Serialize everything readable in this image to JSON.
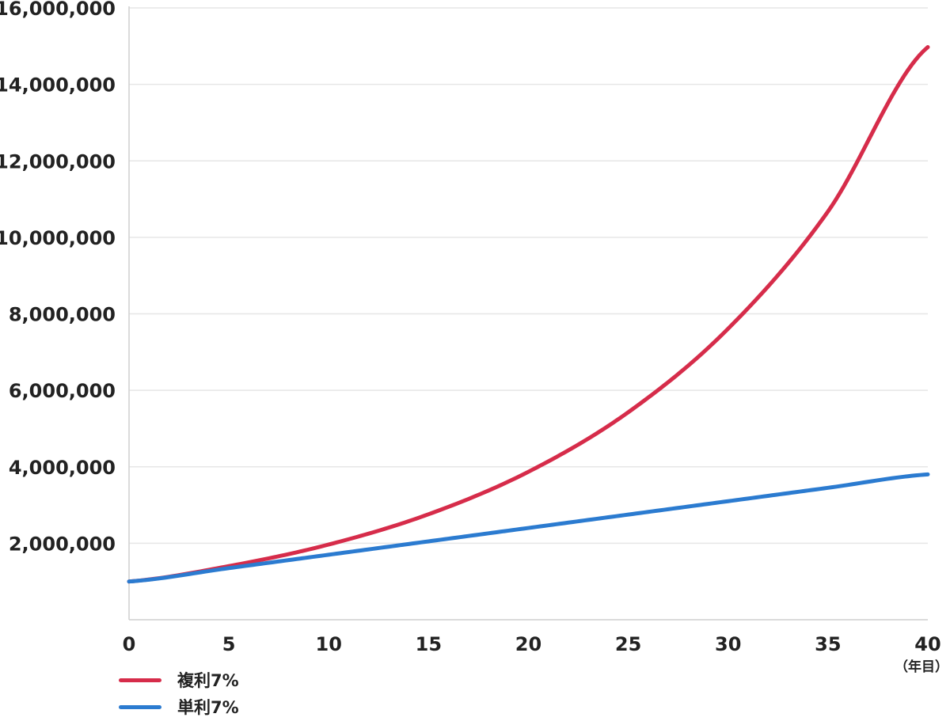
{
  "chart_data": {
    "type": "line",
    "title": "",
    "xlabel": "",
    "ylabel": "",
    "x_unit_label": "（年目）",
    "xlim": [
      0,
      40
    ],
    "ylim": [
      0,
      16000000
    ],
    "x_ticks": [
      0,
      5,
      10,
      15,
      20,
      25,
      30,
      35,
      40
    ],
    "y_ticks": [
      2000000,
      4000000,
      6000000,
      8000000,
      10000000,
      12000000,
      14000000,
      16000000
    ],
    "y_tick_labels": [
      "2,000,000",
      "4,000,000",
      "6,000,000",
      "8,000,000",
      "10,000,000",
      "12,000,000",
      "14,000,000",
      "16,000,000"
    ],
    "grid": true,
    "legend_position": "bottom-left",
    "x": [
      0,
      5,
      10,
      15,
      20,
      25,
      30,
      35,
      40
    ],
    "series": [
      {
        "name": "複利7%",
        "color": "#d62c4a",
        "values": [
          1000000,
          1402552,
          1967151,
          2759032,
          3869684,
          5427433,
          7612255,
          10676581,
          14974458
        ]
      },
      {
        "name": "単利7%",
        "color": "#2b7bd0",
        "values": [
          1000000,
          1350000,
          1700000,
          2050000,
          2400000,
          2750000,
          3100000,
          3450000,
          3800000
        ]
      }
    ]
  }
}
